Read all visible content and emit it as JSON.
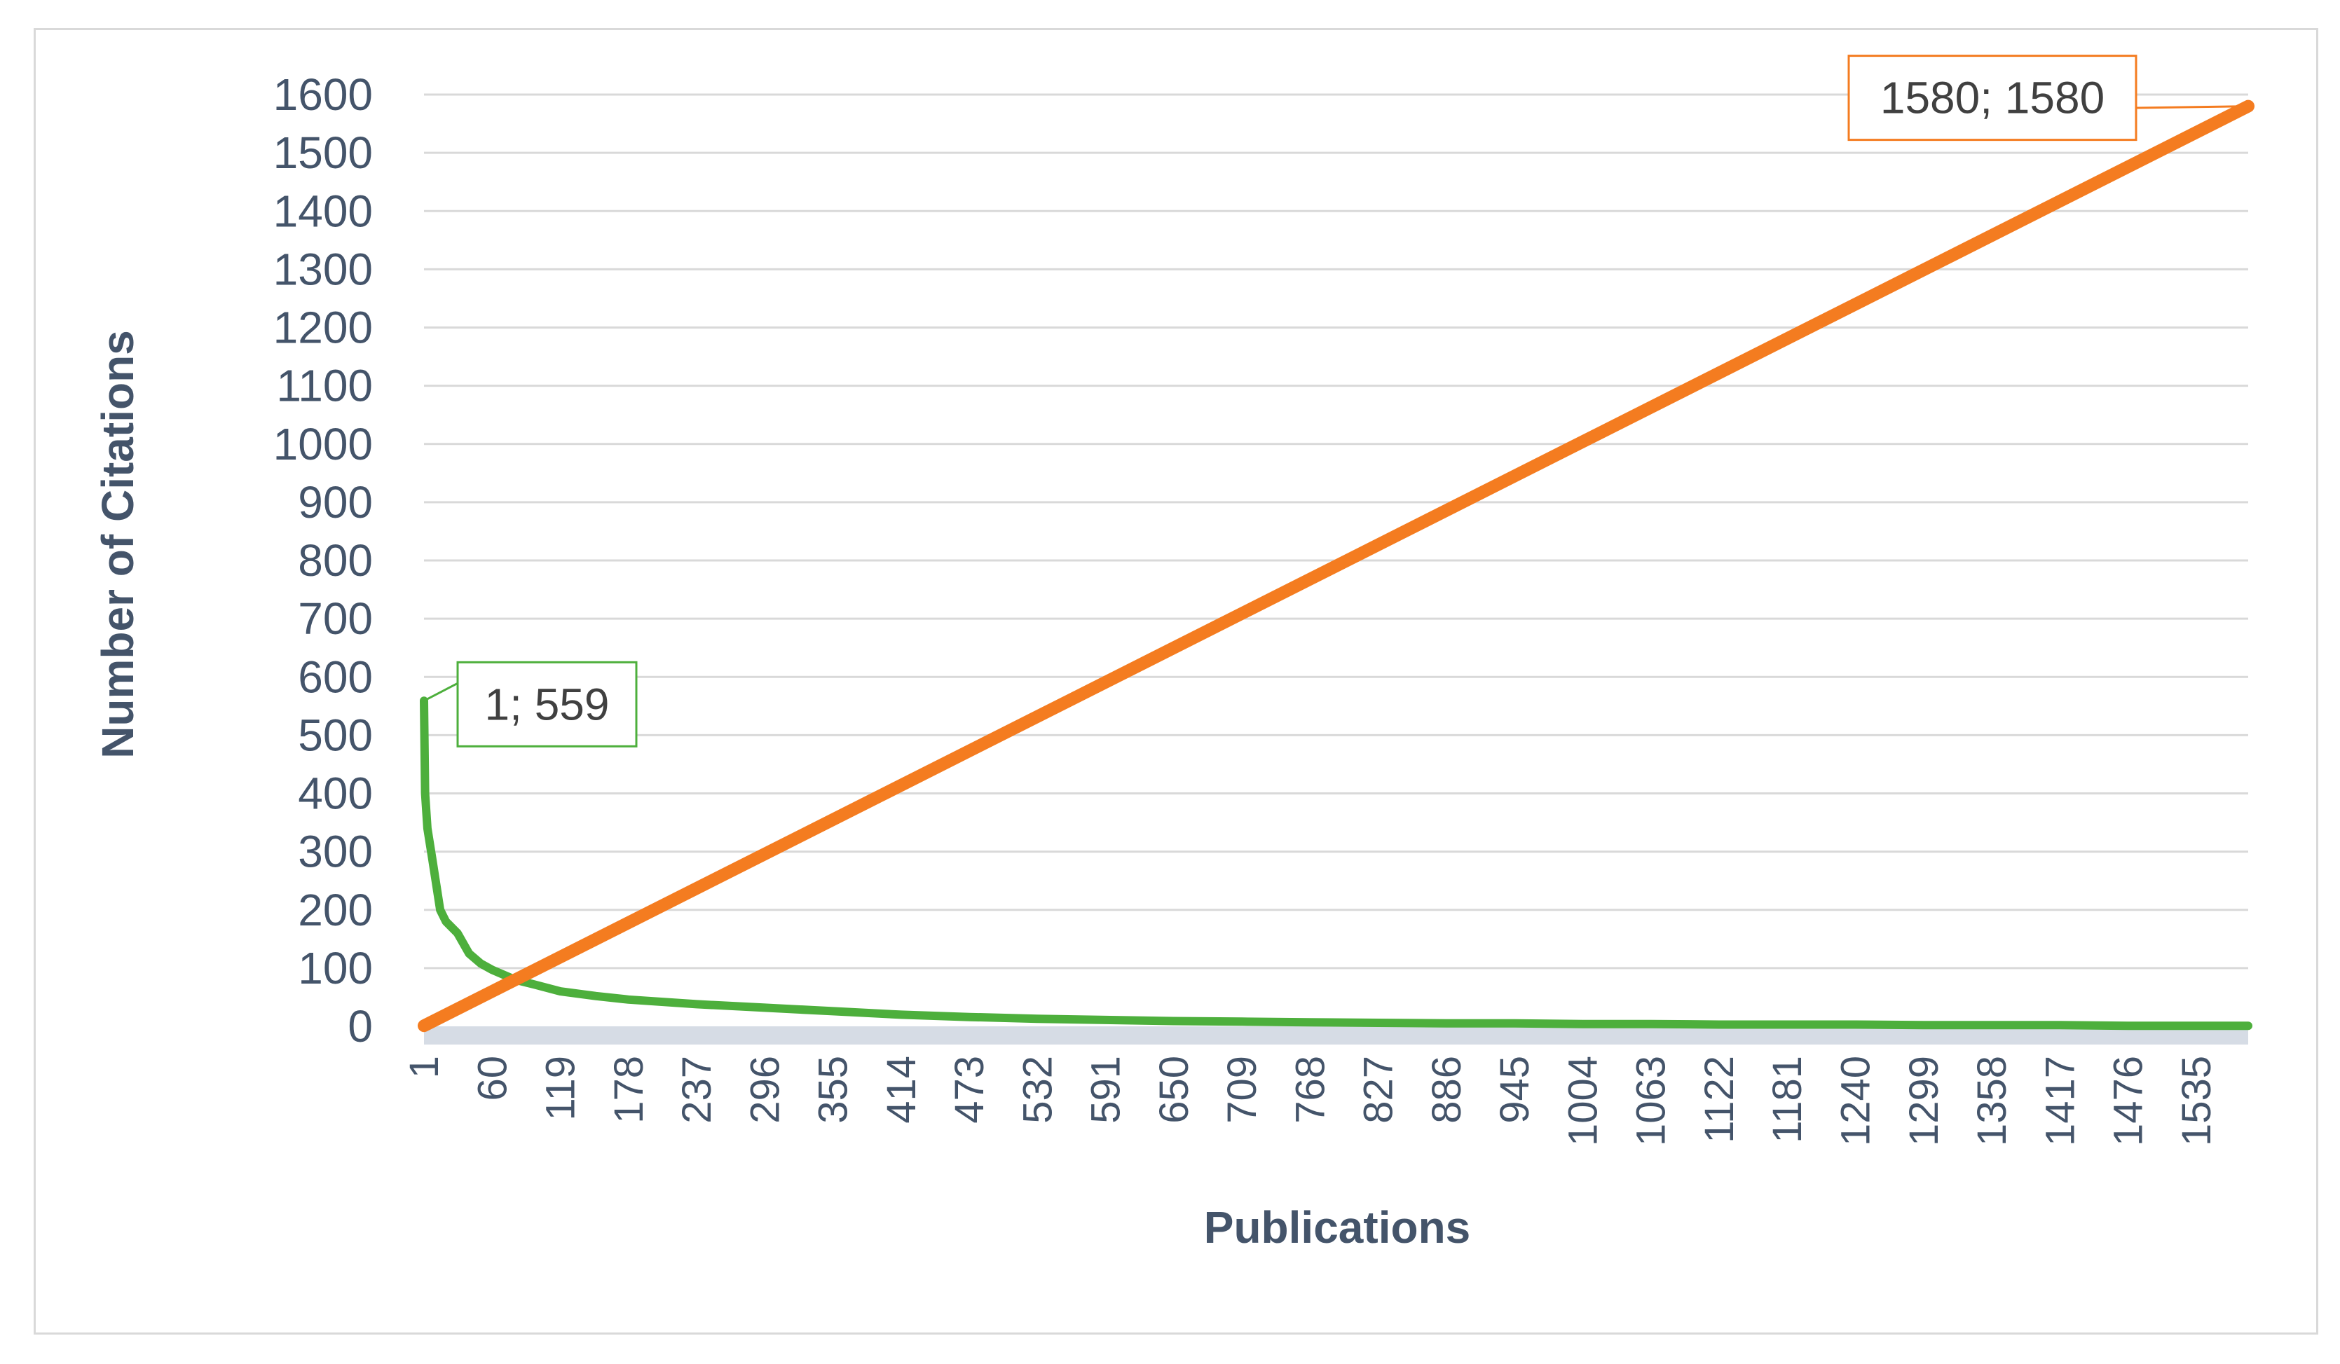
{
  "chart_data": {
    "type": "line",
    "title": "",
    "xlabel": "Publications",
    "ylabel": "Number of Citations",
    "x_range": [
      1,
      1580
    ],
    "ylim": [
      0,
      1600
    ],
    "y_ticks": [
      "0",
      "100",
      "200",
      "300",
      "400",
      "500",
      "600",
      "700",
      "800",
      "900",
      "1000",
      "1100",
      "1200",
      "1300",
      "1400",
      "1500",
      "1600"
    ],
    "x_ticks": [
      "1",
      "60",
      "119",
      "178",
      "237",
      "296",
      "355",
      "414",
      "473",
      "532",
      "591",
      "650",
      "709",
      "768",
      "827",
      "886",
      "945",
      "1004",
      "1063",
      "1122",
      "1181",
      "1240",
      "1299",
      "1358",
      "1417",
      "1476",
      "1535"
    ],
    "grid": "horizontal",
    "legend": "none",
    "series": [
      {
        "color": "#4daf3c",
        "x": [
          1,
          2,
          4,
          8,
          15,
          20,
          30,
          40,
          50,
          60,
          80,
          100,
          119,
          150,
          178,
          237,
          296,
          355,
          414,
          473,
          532,
          591,
          650,
          709,
          768,
          827,
          886,
          945,
          1004,
          1063,
          1122,
          1181,
          1240,
          1299,
          1358,
          1417,
          1476,
          1535,
          1580
        ],
        "y": [
          559,
          400,
          340,
          290,
          200,
          180,
          160,
          125,
          108,
          97,
          80,
          70,
          60,
          52,
          46,
          38,
          32,
          26,
          20,
          16,
          13,
          11,
          9,
          8,
          7,
          6,
          5,
          5,
          4,
          4,
          3,
          3,
          3,
          2,
          2,
          2,
          1,
          1,
          1
        ]
      },
      {
        "color": "#f47c20",
        "x": [
          1,
          1580
        ],
        "y": [
          1,
          1580
        ]
      }
    ],
    "annotations": [
      {
        "text": "1; 559",
        "x": 1,
        "y": 559,
        "color": "#4daf3c"
      },
      {
        "text": "1580; 1580",
        "x": 1580,
        "y": 1580,
        "color": "#f47c20"
      }
    ]
  }
}
